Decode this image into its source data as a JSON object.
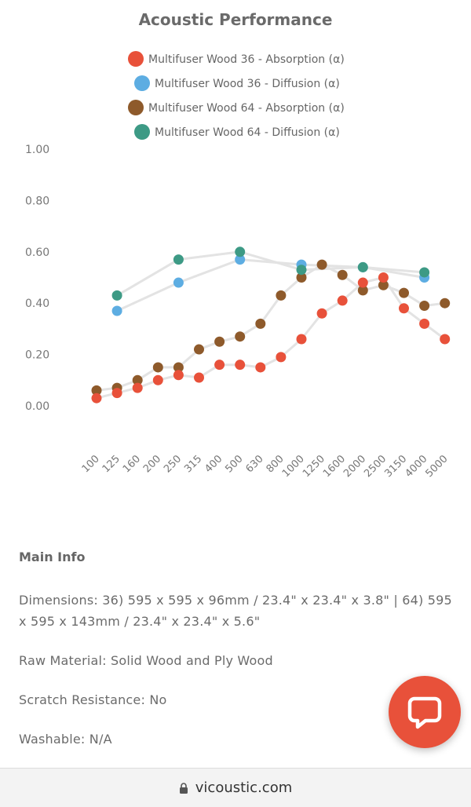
{
  "chart_data": {
    "type": "line",
    "title": "Acoustic Performance",
    "categories": [
      "100",
      "125",
      "160",
      "200",
      "250",
      "315",
      "400",
      "500",
      "630",
      "800",
      "1000",
      "1250",
      "1600",
      "2000",
      "2500",
      "3150",
      "4000",
      "5000"
    ],
    "y_ticks": [
      "1.00",
      "0.80",
      "0.60",
      "0.40",
      "0.20",
      "0.00"
    ],
    "ylim": [
      0,
      1
    ],
    "legend_position": "top",
    "grid": false,
    "series": [
      {
        "name": "Multifuser Wood 36 - Absorption (α)",
        "color": "#e8513a",
        "values": [
          0.03,
          0.05,
          0.07,
          0.1,
          0.12,
          0.11,
          0.16,
          0.16,
          0.15,
          0.19,
          0.26,
          0.36,
          0.41,
          0.48,
          0.5,
          0.38,
          0.32,
          0.26
        ]
      },
      {
        "name": "Multifuser Wood 36 - Diffusion (α)",
        "color": "#5dade2",
        "values": [
          null,
          0.37,
          null,
          null,
          0.48,
          null,
          null,
          0.57,
          null,
          null,
          0.55,
          null,
          null,
          0.54,
          null,
          null,
          0.5,
          null
        ]
      },
      {
        "name": "Multifuser Wood 64 - Absorption (α)",
        "color": "#8e5a2b",
        "values": [
          0.06,
          0.07,
          0.1,
          0.15,
          0.15,
          0.22,
          0.25,
          0.27,
          0.32,
          0.43,
          0.5,
          0.55,
          0.51,
          0.45,
          0.47,
          0.44,
          0.39,
          0.4
        ]
      },
      {
        "name": "Multifuser Wood 64 - Diffusion (α)",
        "color": "#3d9a85",
        "values": [
          null,
          0.43,
          null,
          null,
          0.57,
          null,
          null,
          0.6,
          null,
          null,
          0.53,
          null,
          null,
          0.54,
          null,
          null,
          0.52,
          null
        ]
      }
    ]
  },
  "info": {
    "title": "Main Info",
    "lines": [
      "Dimensions: 36) 595 x 595 x 96mm / 23.4\" x 23.4\" x 3.8\" | 64) 595 x 595 x 143mm / 23.4\" x 23.4\" x 5.6\"",
      "Raw Material: Solid Wood and Ply Wood",
      "Scratch Resistance: No",
      "Washable: N/A"
    ]
  },
  "chat": {
    "icon": "chat-bubble-icon"
  },
  "browser": {
    "url": "vicoustic.com",
    "icon": "lock-icon"
  }
}
